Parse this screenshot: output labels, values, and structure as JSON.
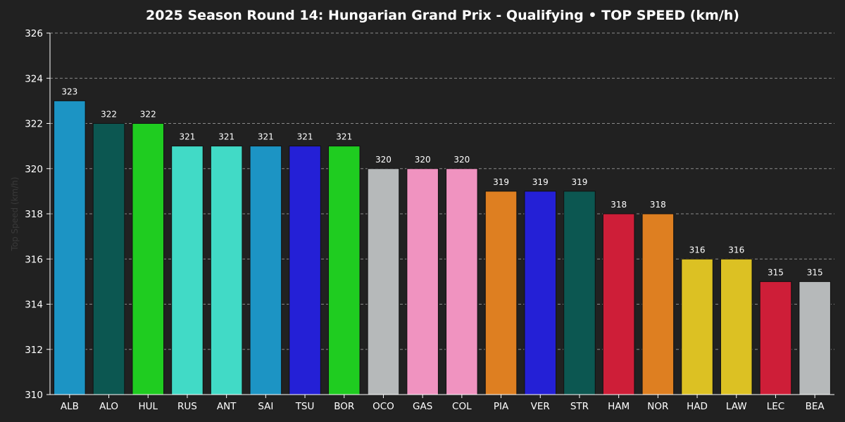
{
  "chart_data": {
    "type": "bar",
    "title": "2025 Season Round 14: Hungarian Grand Prix - Qualifying  •  TOP SPEED (km/h)",
    "xlabel": "",
    "ylabel": "Top Speed (km/h)",
    "ylim": [
      310,
      326
    ],
    "yticks": [
      310,
      312,
      314,
      316,
      318,
      320,
      322,
      324,
      326
    ],
    "grid": true,
    "categories": [
      "ALB",
      "ALO",
      "HUL",
      "RUS",
      "ANT",
      "SAI",
      "TSU",
      "BOR",
      "OCO",
      "GAS",
      "COL",
      "PIA",
      "VER",
      "STR",
      "HAM",
      "NOR",
      "HAD",
      "LAW",
      "LEC",
      "BEA"
    ],
    "values": [
      323,
      322,
      322,
      321,
      321,
      321,
      321,
      321,
      320,
      320,
      320,
      319,
      319,
      319,
      318,
      318,
      316,
      316,
      315,
      315
    ],
    "bar_colors": [
      "#1c94c4",
      "#0c5751",
      "#1fcc20",
      "#41dac6",
      "#41dac6",
      "#1c94c4",
      "#2420d6",
      "#1fcc20",
      "#b6b9ba",
      "#f093c0",
      "#f093c0",
      "#de7f21",
      "#2420d6",
      "#0c5751",
      "#ce1e38",
      "#de7f21",
      "#dcc123",
      "#dcc123",
      "#ce1e38",
      "#b6b9ba"
    ]
  },
  "colors": {
    "background": "#212121",
    "grid": "#8a8a8a",
    "axis": "#ffffff",
    "text": "#ffffff"
  }
}
